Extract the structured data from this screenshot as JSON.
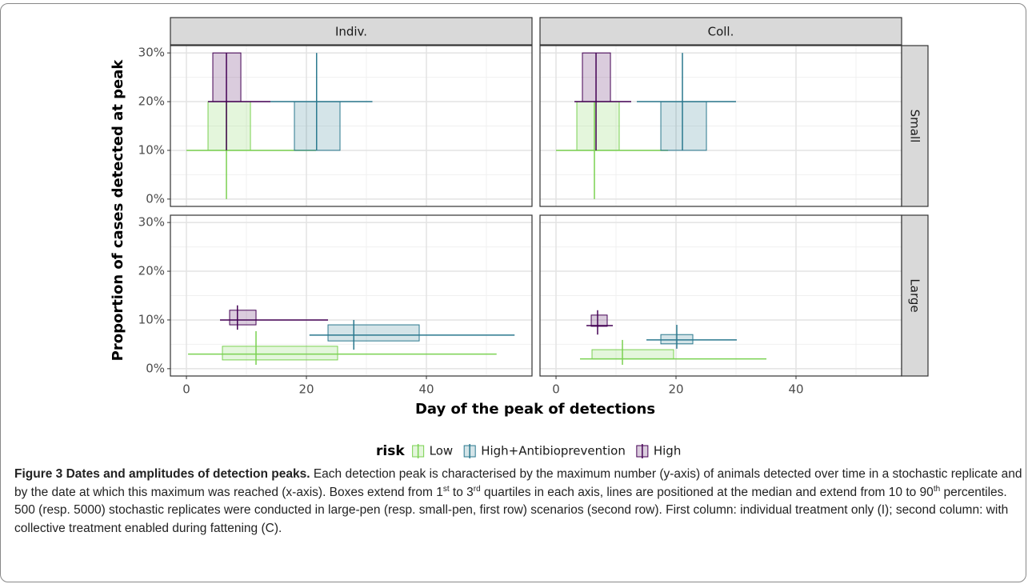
{
  "chart_data": {
    "type": "box2d",
    "x_label": "Day of the peak of detections",
    "y_label": "Proportion of cases detected at peak",
    "legend_title": "risk",
    "columns": [
      "Indiv.",
      "Coll."
    ],
    "rows": [
      "Small",
      "Large"
    ],
    "xlim": [
      -2.67,
      57.6
    ],
    "xticks": [
      0,
      20,
      40
    ],
    "minor_xticks": [
      10,
      30,
      50
    ],
    "ylim": [
      -1.5,
      31.5
    ],
    "yticks": [
      {
        "value": 0,
        "label": "0%"
      },
      {
        "value": 10,
        "label": "10%"
      },
      {
        "value": 20,
        "label": "20%"
      },
      {
        "value": 30,
        "label": "30%"
      }
    ],
    "minor_yticks": [
      5,
      15,
      25
    ],
    "grid": true,
    "series": [
      {
        "name": "Low",
        "color": "#7ad151"
      },
      {
        "name": "High+Antibioprevention",
        "color": "#2a788e"
      },
      {
        "name": "High",
        "color": "#440154"
      }
    ],
    "panels": [
      [
        [
          {
            "x_q1": 3.6,
            "x_q3": 10.67,
            "x_median": 6.67,
            "x_p10": 0,
            "x_p90": 21.6,
            "y_q1": 10,
            "y_q3": 20,
            "y_median": 10,
            "y_p10": 0,
            "y_p90": 20
          },
          {
            "x_q1": 18,
            "x_q3": 25.6,
            "x_median": 21.7,
            "x_p10": 14,
            "x_p90": 31,
            "y_q1": 10,
            "y_q3": 20,
            "y_median": 20,
            "y_p10": 10,
            "y_p90": 30
          },
          {
            "x_q1": 4.4,
            "x_q3": 9.07,
            "x_median": 6.67,
            "x_p10": 3.6,
            "x_p90": 14,
            "y_q1": 20,
            "y_q3": 30,
            "y_median": 20,
            "y_p10": 10,
            "y_p90": 30
          }
        ],
        [
          {
            "x_q1": 3.47,
            "x_q3": 10.53,
            "x_median": 6.4,
            "x_p10": 0,
            "x_p90": 18.67,
            "y_q1": 10,
            "y_q3": 20,
            "y_median": 10,
            "y_p10": 0,
            "y_p90": 20
          },
          {
            "x_q1": 17.47,
            "x_q3": 25.07,
            "x_median": 21.07,
            "x_p10": 13.47,
            "x_p90": 30,
            "y_q1": 10,
            "y_q3": 20,
            "y_median": 20,
            "y_p10": 10,
            "y_p90": 30
          },
          {
            "x_q1": 4.4,
            "x_q3": 9.07,
            "x_median": 6.67,
            "x_p10": 3.07,
            "x_p90": 12.53,
            "y_q1": 20,
            "y_q3": 30,
            "y_median": 20,
            "y_p10": 10,
            "y_p90": 30
          }
        ]
      ],
      [
        [
          {
            "x_q1": 6,
            "x_q3": 25.2,
            "x_median": 11.6,
            "x_p10": 0.27,
            "x_p90": 51.7,
            "y_q1": 1.8,
            "y_q3": 4.6,
            "y_median": 3,
            "y_p10": 0.8,
            "y_p90": 7.7
          },
          {
            "x_q1": 23.6,
            "x_q3": 38.8,
            "x_median": 27.9,
            "x_p10": 20.5,
            "x_p90": 54.7,
            "y_q1": 5.7,
            "y_q3": 9,
            "y_median": 6.9,
            "y_p10": 3.9,
            "y_p90": 10
          },
          {
            "x_q1": 7.2,
            "x_q3": 11.6,
            "x_median": 8.5,
            "x_p10": 5.6,
            "x_p90": 23.6,
            "y_q1": 9,
            "y_q3": 12,
            "y_median": 10,
            "y_p10": 8,
            "y_p90": 13
          }
        ],
        [
          {
            "x_q1": 6,
            "x_q3": 19.6,
            "x_median": 11.07,
            "x_p10": 4,
            "x_p90": 35.07,
            "y_q1": 2,
            "y_q3": 3.9,
            "y_median": 2,
            "y_p10": 0.8,
            "y_p90": 5.9
          },
          {
            "x_q1": 17.47,
            "x_q3": 22.8,
            "x_median": 20.13,
            "x_p10": 15.07,
            "x_p90": 30.13,
            "y_q1": 5.1,
            "y_q3": 7,
            "y_median": 5.9,
            "y_p10": 4.1,
            "y_p90": 9
          },
          {
            "x_q1": 5.87,
            "x_q3": 8.53,
            "x_median": 6.93,
            "x_p10": 5.07,
            "x_p90": 9.47,
            "y_q1": 8.7,
            "y_q3": 11,
            "y_median": 8.85,
            "y_p10": 7,
            "y_p90": 12
          }
        ]
      ]
    ]
  },
  "caption": {
    "label": "Figure 3",
    "title": "Dates and amplitudes of detection peaks.",
    "parts": [
      " Each detection peak is characterised by the maximum number (y-axis) of animals detected over time in a stochastic replicate and by the date at which this maximum was reached (x-axis). Boxes extend from 1",
      "st",
      " to 3",
      "rd",
      " quartiles in each axis, lines are positioned at the median and extend from 10 to 90",
      "th",
      " percentiles. 500 (resp. 5000) stochastic replicates were conducted in large-pen (resp. small-pen, first row) scenarios (second row). First column: individual treatment only (I); second column: with collective treatment enabled during fattening (C)."
    ]
  }
}
